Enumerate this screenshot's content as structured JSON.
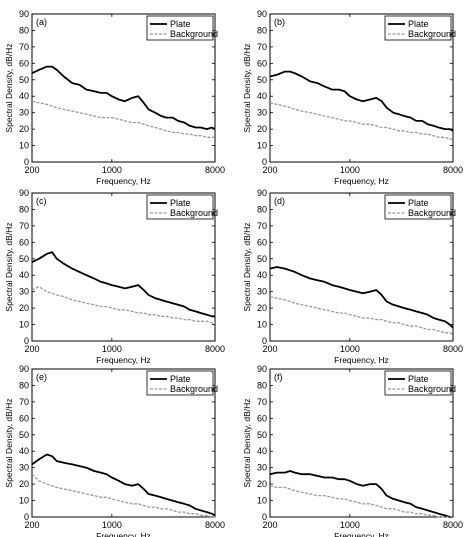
{
  "chart_data": [
    {
      "type": "line",
      "panel_label": "(a)",
      "xlabel": "Frequency, Hz",
      "ylabel": "Spectral Density, dB/Hz",
      "x_scale": "log",
      "xlim": [
        200,
        8000
      ],
      "ylim": [
        0,
        90
      ],
      "x_ticks": [
        200,
        1000,
        8000
      ],
      "y_ticks": [
        0,
        10,
        20,
        30,
        40,
        50,
        60,
        70,
        80,
        90
      ],
      "legend_position": "top-right",
      "series": [
        {
          "name": "Plate",
          "color": "#000000",
          "style": "solid",
          "x": [
            200,
            230,
            270,
            300,
            330,
            380,
            450,
            520,
            600,
            700,
            800,
            900,
            1000,
            1150,
            1300,
            1500,
            1700,
            1900,
            2100,
            2400,
            2700,
            3000,
            3400,
            3800,
            4300,
            4800,
            5400,
            6000,
            6800,
            7500,
            8000
          ],
          "y": [
            54,
            56,
            58,
            58,
            56,
            52,
            48,
            47,
            44,
            43,
            42,
            42,
            40,
            38,
            37,
            39,
            40,
            36,
            32,
            30,
            28,
            27,
            27,
            25,
            24,
            22,
            21,
            21,
            20,
            21,
            20
          ]
        },
        {
          "name": "Background",
          "color": "#999999",
          "style": "dashed",
          "x": [
            200,
            230,
            270,
            300,
            330,
            380,
            450,
            520,
            600,
            700,
            800,
            900,
            1000,
            1150,
            1300,
            1500,
            1700,
            1900,
            2100,
            2400,
            2700,
            3000,
            3400,
            3800,
            4300,
            4800,
            5400,
            6000,
            6800,
            7500,
            8000
          ],
          "y": [
            37,
            36,
            35,
            34,
            33,
            32,
            31,
            30,
            29,
            28,
            27,
            27,
            27,
            26,
            25,
            24,
            24,
            23,
            22,
            21,
            20,
            19,
            18,
            18,
            17,
            17,
            16,
            16,
            15,
            15,
            15
          ]
        }
      ]
    },
    {
      "type": "line",
      "panel_label": "(b)",
      "xlabel": "Frequency, Hz",
      "ylabel": "Spectral Density, dB/Hz",
      "x_scale": "log",
      "xlim": [
        200,
        8000
      ],
      "ylim": [
        0,
        90
      ],
      "x_ticks": [
        200,
        1000,
        8000
      ],
      "y_ticks": [
        0,
        10,
        20,
        30,
        40,
        50,
        60,
        70,
        80,
        90
      ],
      "legend_position": "top-right",
      "series": [
        {
          "name": "Plate",
          "color": "#000000",
          "style": "solid",
          "x": [
            200,
            230,
            270,
            300,
            330,
            380,
            450,
            520,
            600,
            700,
            800,
            900,
            1000,
            1150,
            1300,
            1500,
            1700,
            1900,
            2100,
            2400,
            2700,
            3000,
            3400,
            3800,
            4300,
            4800,
            5400,
            6000,
            6800,
            7500,
            8000
          ],
          "y": [
            52,
            53,
            55,
            55,
            54,
            52,
            49,
            48,
            46,
            44,
            44,
            43,
            40,
            38,
            37,
            38,
            39,
            37,
            33,
            30,
            29,
            28,
            27,
            25,
            25,
            23,
            22,
            21,
            20,
            20,
            19
          ]
        },
        {
          "name": "Background",
          "color": "#999999",
          "style": "dashed",
          "x": [
            200,
            230,
            270,
            300,
            330,
            380,
            450,
            520,
            600,
            700,
            800,
            900,
            1000,
            1150,
            1300,
            1500,
            1700,
            1900,
            2100,
            2400,
            2700,
            3000,
            3400,
            3800,
            4300,
            4800,
            5400,
            6000,
            6800,
            7500,
            8000
          ],
          "y": [
            36,
            35,
            34,
            33,
            32,
            31,
            30,
            29,
            28,
            27,
            26,
            25,
            25,
            24,
            23,
            23,
            22,
            21,
            21,
            20,
            19,
            19,
            18,
            18,
            17,
            17,
            16,
            15,
            15,
            14,
            14
          ]
        }
      ]
    },
    {
      "type": "line",
      "panel_label": "(c)",
      "xlabel": "Frequency, Hz",
      "ylabel": "Spectral Density, dB/Hz",
      "x_scale": "log",
      "xlim": [
        200,
        8000
      ],
      "ylim": [
        0,
        90
      ],
      "x_ticks": [
        200,
        1000,
        8000
      ],
      "y_ticks": [
        0,
        10,
        20,
        30,
        40,
        50,
        60,
        70,
        80,
        90
      ],
      "legend_position": "top-right",
      "series": [
        {
          "name": "Plate",
          "color": "#000000",
          "style": "solid",
          "x": [
            200,
            230,
            270,
            300,
            330,
            380,
            450,
            520,
            600,
            700,
            800,
            900,
            1000,
            1150,
            1300,
            1500,
            1700,
            1900,
            2100,
            2400,
            2700,
            3000,
            3400,
            3800,
            4300,
            4800,
            5400,
            6000,
            6800,
            7500,
            8000
          ],
          "y": [
            48,
            50,
            53,
            54,
            50,
            47,
            44,
            42,
            40,
            38,
            36,
            35,
            34,
            33,
            32,
            33,
            34,
            31,
            28,
            26,
            25,
            24,
            23,
            22,
            21,
            19,
            18,
            17,
            16,
            15,
            15
          ]
        },
        {
          "name": "Background",
          "color": "#999999",
          "style": "dashed",
          "x": [
            200,
            230,
            270,
            300,
            330,
            380,
            450,
            520,
            600,
            700,
            800,
            900,
            1000,
            1150,
            1300,
            1500,
            1700,
            1900,
            2100,
            2400,
            2700,
            3000,
            3400,
            3800,
            4300,
            4800,
            5400,
            6000,
            6800,
            7500,
            8000
          ],
          "y": [
            31,
            33,
            30,
            29,
            28,
            27,
            25,
            24,
            23,
            22,
            21,
            21,
            20,
            19,
            19,
            18,
            17,
            17,
            16,
            16,
            15,
            15,
            14,
            14,
            13,
            13,
            12,
            12,
            12,
            11,
            11
          ]
        }
      ]
    },
    {
      "type": "line",
      "panel_label": "(d)",
      "xlabel": "Frequency, Hz",
      "ylabel": "Spectral Density, dB/Hz",
      "x_scale": "log",
      "xlim": [
        200,
        8000
      ],
      "ylim": [
        0,
        90
      ],
      "x_ticks": [
        200,
        1000,
        8000
      ],
      "y_ticks": [
        0,
        10,
        20,
        30,
        40,
        50,
        60,
        70,
        80,
        90
      ],
      "legend_position": "top-right",
      "series": [
        {
          "name": "Plate",
          "color": "#000000",
          "style": "solid",
          "x": [
            200,
            230,
            270,
            300,
            330,
            380,
            450,
            520,
            600,
            700,
            800,
            900,
            1000,
            1150,
            1300,
            1500,
            1700,
            1900,
            2100,
            2400,
            2700,
            3000,
            3400,
            3800,
            4300,
            4800,
            5400,
            6000,
            6800,
            7500,
            8000
          ],
          "y": [
            44,
            45,
            44,
            43,
            42,
            40,
            38,
            37,
            36,
            34,
            33,
            32,
            31,
            30,
            29,
            30,
            31,
            28,
            24,
            22,
            21,
            20,
            19,
            18,
            17,
            16,
            14,
            13,
            12,
            10,
            8
          ]
        },
        {
          "name": "Background",
          "color": "#999999",
          "style": "dashed",
          "x": [
            200,
            230,
            270,
            300,
            330,
            380,
            450,
            520,
            600,
            700,
            800,
            900,
            1000,
            1150,
            1300,
            1500,
            1700,
            1900,
            2100,
            2400,
            2700,
            3000,
            3400,
            3800,
            4300,
            4800,
            5400,
            6000,
            6800,
            7500,
            8000
          ],
          "y": [
            27,
            26,
            25,
            24,
            23,
            22,
            21,
            20,
            19,
            18,
            17,
            17,
            16,
            15,
            14,
            14,
            13,
            13,
            12,
            11,
            11,
            10,
            9,
            9,
            8,
            7,
            7,
            6,
            5,
            5,
            4
          ]
        }
      ]
    },
    {
      "type": "line",
      "panel_label": "(e)",
      "xlabel": "Frequency, Hz",
      "ylabel": "Spectral Density, dB/Hz",
      "x_scale": "log",
      "xlim": [
        200,
        8000
      ],
      "ylim": [
        0,
        90
      ],
      "x_ticks": [
        200,
        1000,
        8000
      ],
      "y_ticks": [
        0,
        10,
        20,
        30,
        40,
        50,
        60,
        70,
        80,
        90
      ],
      "legend_position": "top-right",
      "series": [
        {
          "name": "Plate",
          "color": "#000000",
          "style": "solid",
          "x": [
            200,
            230,
            270,
            300,
            330,
            380,
            450,
            520,
            600,
            700,
            800,
            900,
            1000,
            1150,
            1300,
            1500,
            1700,
            1900,
            2100,
            2400,
            2700,
            3000,
            3400,
            3800,
            4300,
            4800,
            5400,
            6000,
            6800,
            7500,
            8000
          ],
          "y": [
            32,
            35,
            38,
            37,
            34,
            33,
            32,
            31,
            30,
            28,
            27,
            26,
            24,
            22,
            20,
            19,
            20,
            17,
            14,
            13,
            12,
            11,
            10,
            9,
            8,
            7,
            5,
            4,
            3,
            2,
            1
          ]
        },
        {
          "name": "Background",
          "color": "#999999",
          "style": "dashed",
          "x": [
            200,
            230,
            270,
            300,
            330,
            380,
            450,
            520,
            600,
            700,
            800,
            900,
            1000,
            1150,
            1300,
            1500,
            1700,
            1900,
            2100,
            2400,
            2700,
            3000,
            3400,
            3800,
            4300,
            4800,
            5400,
            6000,
            6800,
            7500,
            8000
          ],
          "y": [
            26,
            22,
            20,
            19,
            18,
            17,
            16,
            15,
            14,
            13,
            12,
            12,
            11,
            10,
            9,
            8,
            8,
            7,
            6,
            6,
            5,
            5,
            4,
            3,
            3,
            2,
            2,
            1,
            1,
            0,
            0
          ]
        }
      ]
    },
    {
      "type": "line",
      "panel_label": "(f)",
      "xlabel": "Frequency, Hz",
      "ylabel": "Spectral Density, dB/Hz",
      "x_scale": "log",
      "xlim": [
        200,
        8000
      ],
      "ylim": [
        0,
        90
      ],
      "x_ticks": [
        200,
        1000,
        8000
      ],
      "y_ticks": [
        0,
        10,
        20,
        30,
        40,
        50,
        60,
        70,
        80,
        90
      ],
      "legend_position": "top-right",
      "series": [
        {
          "name": "Plate",
          "color": "#000000",
          "style": "solid",
          "x": [
            200,
            230,
            270,
            300,
            330,
            380,
            450,
            520,
            600,
            700,
            800,
            900,
            1000,
            1150,
            1300,
            1500,
            1700,
            1900,
            2100,
            2400,
            2700,
            3000,
            3400,
            3800,
            4300,
            4800,
            5400,
            6000,
            6800,
            7500,
            8000
          ],
          "y": [
            26,
            27,
            27,
            28,
            27,
            26,
            26,
            25,
            24,
            24,
            23,
            23,
            22,
            20,
            19,
            20,
            20,
            17,
            13,
            11,
            10,
            9,
            8,
            6,
            5,
            4,
            3,
            2,
            1,
            0,
            0
          ]
        },
        {
          "name": "Background",
          "color": "#999999",
          "style": "dashed",
          "x": [
            200,
            230,
            270,
            300,
            330,
            380,
            450,
            520,
            600,
            700,
            800,
            900,
            1000,
            1150,
            1300,
            1500,
            1700,
            1900,
            2100,
            2400,
            2700,
            3000,
            3400,
            3800,
            4300,
            4800,
            5400,
            6000,
            6800,
            7500,
            8000
          ],
          "y": [
            19,
            18,
            18,
            17,
            16,
            15,
            14,
            13,
            13,
            12,
            11,
            11,
            10,
            9,
            8,
            8,
            7,
            6,
            5,
            5,
            4,
            3,
            3,
            2,
            2,
            1,
            1,
            0,
            0,
            0,
            0
          ]
        }
      ]
    }
  ]
}
